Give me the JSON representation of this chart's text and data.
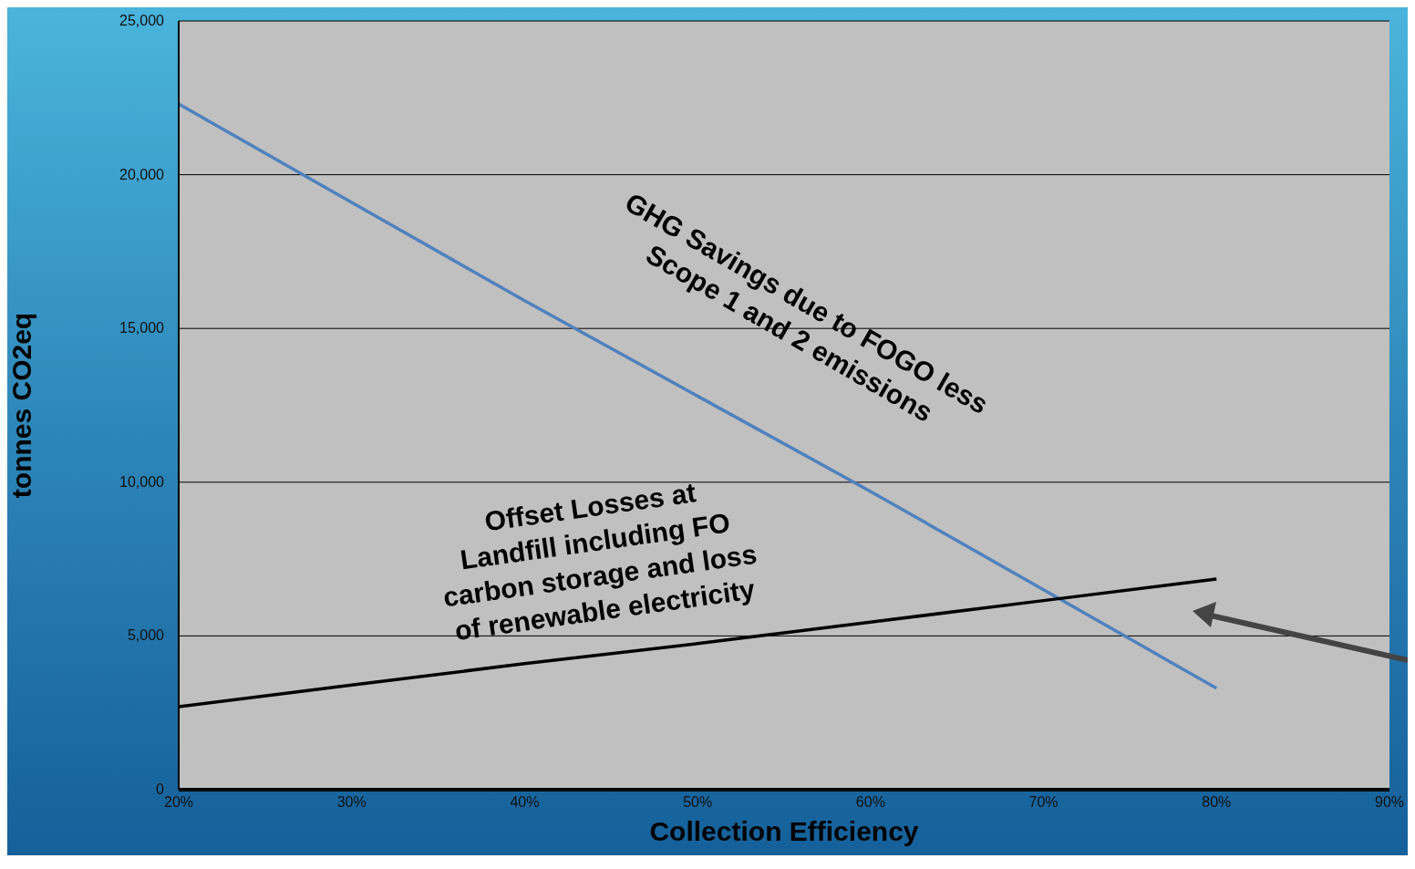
{
  "chart_data": {
    "type": "line",
    "xlabel": "Collection Efficiency",
    "ylabel": "tonnes CO2eq",
    "x": [
      20,
      30,
      40,
      50,
      60,
      70,
      80
    ],
    "series": [
      {
        "name": "GHG Savings due to FOGO less Scope 1 and 2 emissions",
        "color": "#4f81bd",
        "values": [
          22300,
          19100,
          15900,
          12800,
          9700,
          6500,
          3300
        ]
      },
      {
        "name": "Offset Losses at Landfill including FO carbon storage and loss of renewable electricity",
        "color": "#000000",
        "values": [
          2700,
          3400,
          4100,
          4750,
          5450,
          6150,
          6850
        ]
      }
    ],
    "xlim": [
      20,
      90
    ],
    "xticks": [
      {
        "value": 20,
        "label": "20%"
      },
      {
        "value": 30,
        "label": "30%"
      },
      {
        "value": 40,
        "label": "40%"
      },
      {
        "value": 50,
        "label": "50%"
      },
      {
        "value": 60,
        "label": "60%"
      },
      {
        "value": 70,
        "label": "70%"
      },
      {
        "value": 80,
        "label": "80%"
      },
      {
        "value": 90,
        "label": "90%"
      }
    ],
    "ylim": [
      0,
      25000
    ],
    "yticks": [
      0,
      {
        "value": 5000,
        "label": "5,000"
      },
      {
        "value": 10000,
        "label": "10,000"
      },
      {
        "value": 15000,
        "label": "15,000"
      },
      {
        "value": 20000,
        "label": "20,000"
      },
      {
        "value": 25000,
        "label": "25,000"
      }
    ],
    "grid": "y",
    "legend": false,
    "marker": "none",
    "line_style": "solid"
  }
}
